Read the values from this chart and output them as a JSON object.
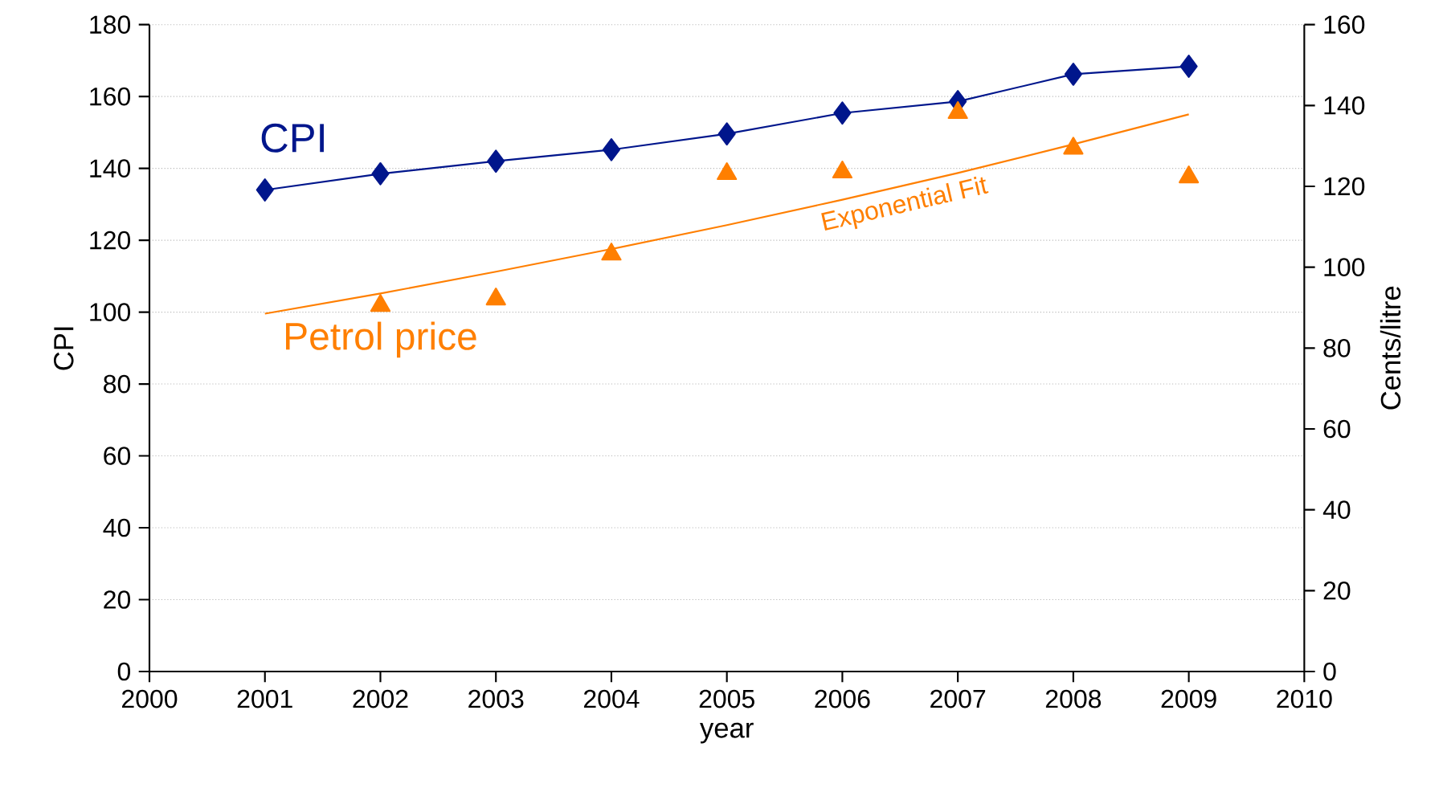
{
  "chart_data": {
    "type": "line",
    "xlabel": "year",
    "ylabel": "CPI",
    "y2label": "Cents/litre",
    "x": [
      2001,
      2002,
      2003,
      2004,
      2005,
      2006,
      2007,
      2008,
      2009
    ],
    "xlim": [
      2000,
      2010
    ],
    "xticks": [
      2000,
      2001,
      2002,
      2003,
      2004,
      2005,
      2006,
      2007,
      2008,
      2009,
      2010
    ],
    "ylim": [
      0,
      180
    ],
    "yticks": [
      0,
      20,
      40,
      60,
      80,
      100,
      120,
      140,
      160,
      180
    ],
    "y2lim": [
      0,
      160
    ],
    "y2ticks": [
      0,
      20,
      40,
      60,
      80,
      100,
      120,
      140,
      160
    ],
    "grid": "y",
    "series": [
      {
        "name": "CPI",
        "color": "#00168c",
        "marker": "diamond",
        "values": [
          134.0,
          138.5,
          142.0,
          145.2,
          149.6,
          155.4,
          158.6,
          166.2,
          168.4
        ]
      },
      {
        "name": "Petrol price",
        "type": "scatter",
        "axis": "y2",
        "color": "#ff7f00",
        "marker": "triangle",
        "x": [
          2002,
          2003,
          2004,
          2005,
          2006,
          2007,
          2008,
          2009
        ],
        "values": [
          90.5,
          92.1,
          103.2,
          123.1,
          123.5,
          138.2,
          129.4,
          122.3
        ]
      },
      {
        "name": "Exponential Fit",
        "type": "line",
        "axis": "y2",
        "color": "#ff7f00",
        "marker": "none",
        "values": [
          88.5,
          93.5,
          98.9,
          104.5,
          110.4,
          116.7,
          123.3,
          130.4,
          137.8
        ]
      }
    ]
  }
}
